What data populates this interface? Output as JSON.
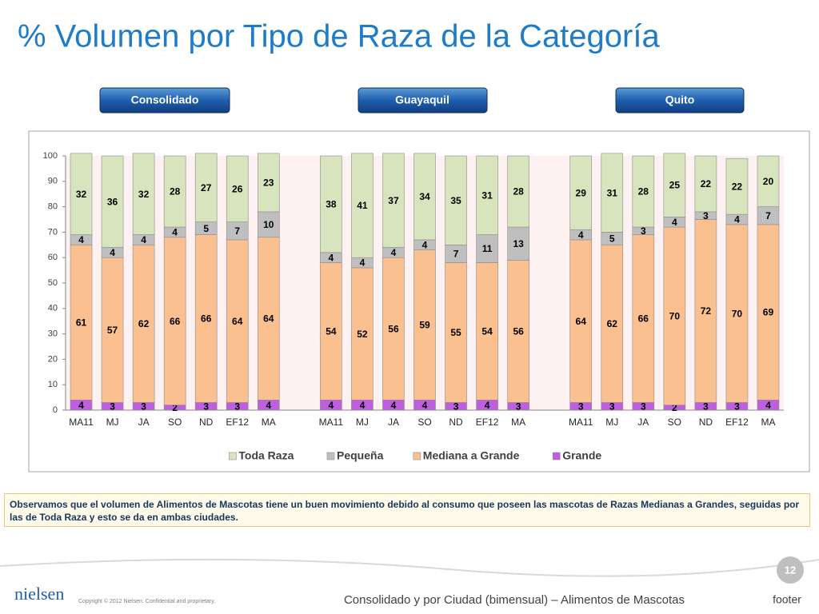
{
  "slide": {
    "title": "% Volumen por Tipo de Raza de la Categoría",
    "buttons": [
      "Consolidado",
      "Guayaquil",
      "Quito"
    ],
    "note": "Observamos que el volumen de Alimentos de Mascotas tiene un buen movimiento debido al consumo que poseen las mascotas  de Razas Medianas a Grandes, seguidas por las de Toda Raza y esto se da en ambas ciudades.",
    "footer_text": "Consolidado y por Ciudad (bimensual) – Alimentos de Mascotas",
    "footer_label": "footer",
    "page_number": "12",
    "logo": "nielsen",
    "copyright": "Copyright © 2012 Nielsen. Confidential and proprietary."
  },
  "chart_data": {
    "type": "stacked_bar",
    "categories": [
      "MA11",
      "MJ",
      "JA",
      "SO",
      "ND",
      "EF12",
      "MA",
      null,
      "MA11",
      "MJ",
      "JA",
      "SO",
      "ND",
      "EF12",
      "MA",
      null,
      "MA11",
      "MJ",
      "JA",
      "SO",
      "ND",
      "EF12",
      "MA"
    ],
    "series": [
      {
        "name": "Grande",
        "color": "#bf5fe0",
        "values": [
          4,
          3,
          3,
          2,
          3,
          3,
          4,
          null,
          4,
          4,
          4,
          4,
          3,
          4,
          3,
          null,
          3,
          3,
          3,
          2,
          3,
          3,
          4
        ]
      },
      {
        "name": "Mediana a Grande",
        "color": "#fac090",
        "values": [
          61,
          57,
          62,
          66,
          66,
          64,
          64,
          null,
          54,
          52,
          56,
          59,
          55,
          54,
          56,
          null,
          64,
          62,
          66,
          70,
          72,
          70,
          69
        ]
      },
      {
        "name": "Pequeña",
        "color": "#bfbfbf",
        "values": [
          4,
          4,
          4,
          4,
          5,
          7,
          10,
          null,
          4,
          4,
          4,
          4,
          7,
          11,
          13,
          null,
          4,
          5,
          3,
          4,
          3,
          4,
          7
        ]
      },
      {
        "name": "Toda Raza",
        "color": "#d7e4bd",
        "values": [
          32,
          36,
          32,
          28,
          27,
          26,
          23,
          null,
          38,
          41,
          37,
          34,
          35,
          31,
          28,
          null,
          29,
          31,
          28,
          25,
          22,
          22,
          20
        ]
      }
    ],
    "ylim": [
      0,
      100
    ],
    "yticks": [
      0,
      10,
      20,
      30,
      40,
      50,
      60,
      70,
      80,
      90,
      100
    ],
    "grid": false,
    "legend": "bottom"
  }
}
